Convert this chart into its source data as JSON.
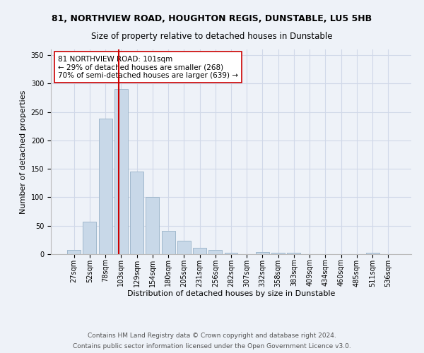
{
  "title1": "81, NORTHVIEW ROAD, HOUGHTON REGIS, DUNSTABLE, LU5 5HB",
  "title2": "Size of property relative to detached houses in Dunstable",
  "xlabel": "Distribution of detached houses by size in Dunstable",
  "ylabel": "Number of detached properties",
  "bar_labels": [
    "27sqm",
    "52sqm",
    "78sqm",
    "103sqm",
    "129sqm",
    "154sqm",
    "180sqm",
    "205sqm",
    "231sqm",
    "256sqm",
    "282sqm",
    "307sqm",
    "332sqm",
    "358sqm",
    "383sqm",
    "409sqm",
    "434sqm",
    "460sqm",
    "485sqm",
    "511sqm",
    "536sqm"
  ],
  "bar_values": [
    8,
    57,
    238,
    291,
    145,
    100,
    41,
    24,
    11,
    7,
    3,
    0,
    4,
    3,
    2,
    0,
    0,
    0,
    0,
    2,
    0
  ],
  "bar_color": "#c8d8e8",
  "bar_edgecolor": "#a0b8cc",
  "vline_color": "#cc0000",
  "annotation_text": "81 NORTHVIEW ROAD: 101sqm\n← 29% of detached houses are smaller (268)\n70% of semi-detached houses are larger (639) →",
  "annotation_box_color": "white",
  "annotation_box_edgecolor": "#cc0000",
  "ylim": [
    0,
    360
  ],
  "yticks": [
    0,
    50,
    100,
    150,
    200,
    250,
    300,
    350
  ],
  "grid_color": "#d0d8e8",
  "bg_color": "#eef2f8",
  "footnote1": "Contains HM Land Registry data © Crown copyright and database right 2024.",
  "footnote2": "Contains public sector information licensed under the Open Government Licence v3.0.",
  "title1_fontsize": 9,
  "title2_fontsize": 8.5,
  "xlabel_fontsize": 8,
  "ylabel_fontsize": 8,
  "tick_fontsize": 7,
  "annotation_fontsize": 7.5,
  "footnote_fontsize": 6.5
}
